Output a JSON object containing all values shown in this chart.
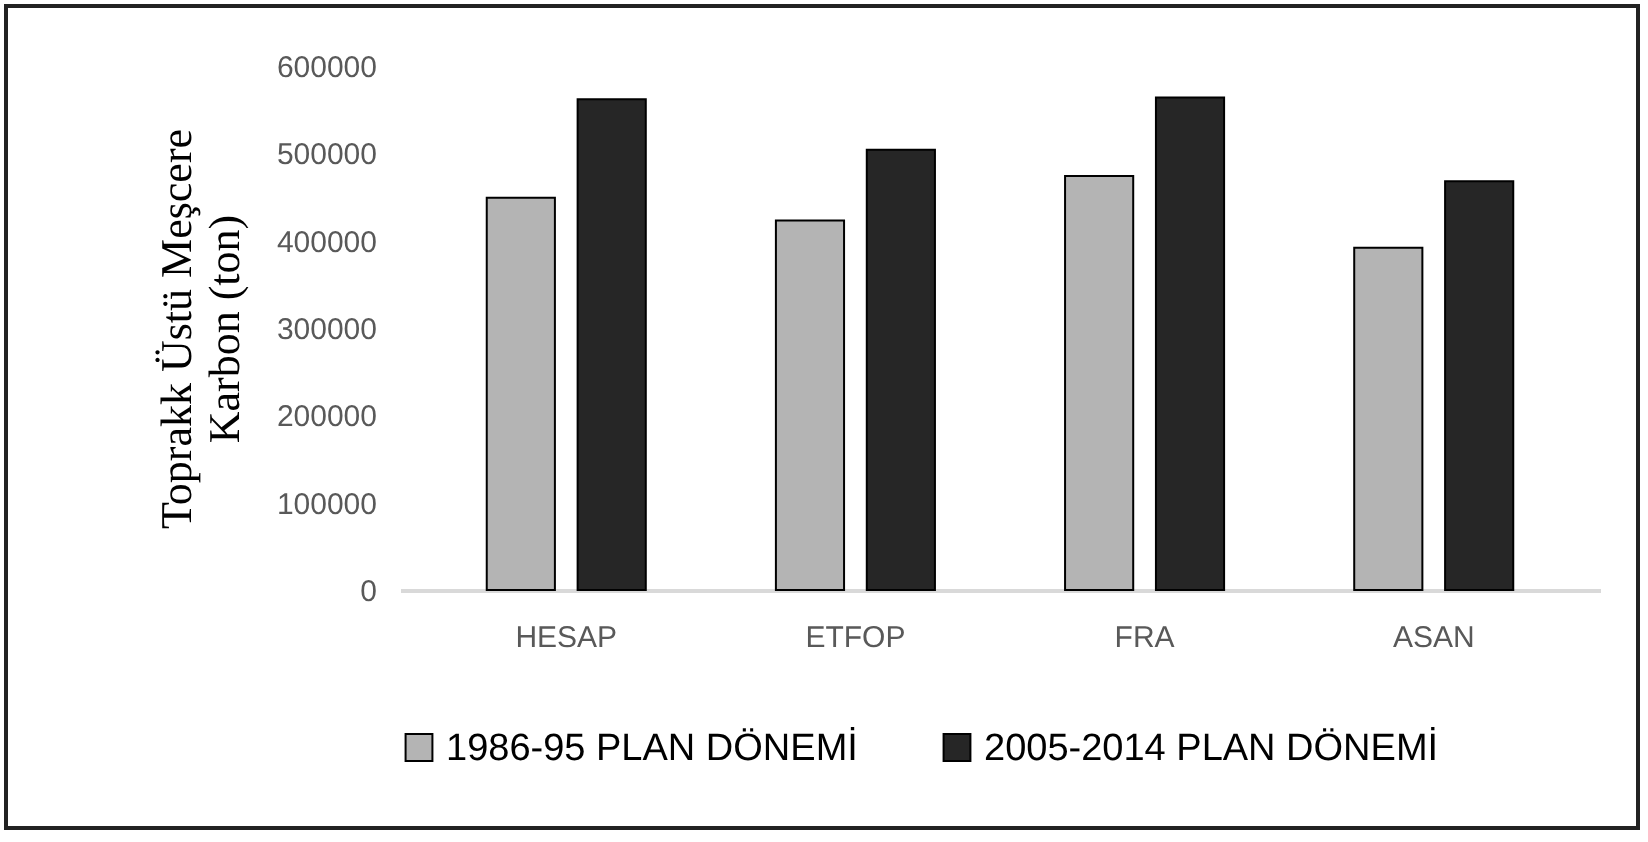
{
  "chart_data": {
    "type": "bar",
    "ylabel": "Toprakk Üstü Meşcere Karbon (ton)",
    "categories": [
      "HESAP",
      "ETFOP",
      "FRA",
      "ASAN"
    ],
    "series": [
      {
        "name": "1986-95 PLAN DÖNEMİ",
        "color": "#b4b4b4",
        "values": [
          449000,
          423000,
          474000,
          392000
        ]
      },
      {
        "name": "2005-2014 PLAN DÖNEMİ",
        "color": "#262626",
        "values": [
          562000,
          504000,
          564000,
          468000
        ]
      }
    ],
    "ylim": [
      0,
      600000
    ],
    "yticks": [
      0,
      100000,
      200000,
      300000,
      400000,
      500000,
      600000
    ],
    "grid": false,
    "legend": "bottom"
  }
}
